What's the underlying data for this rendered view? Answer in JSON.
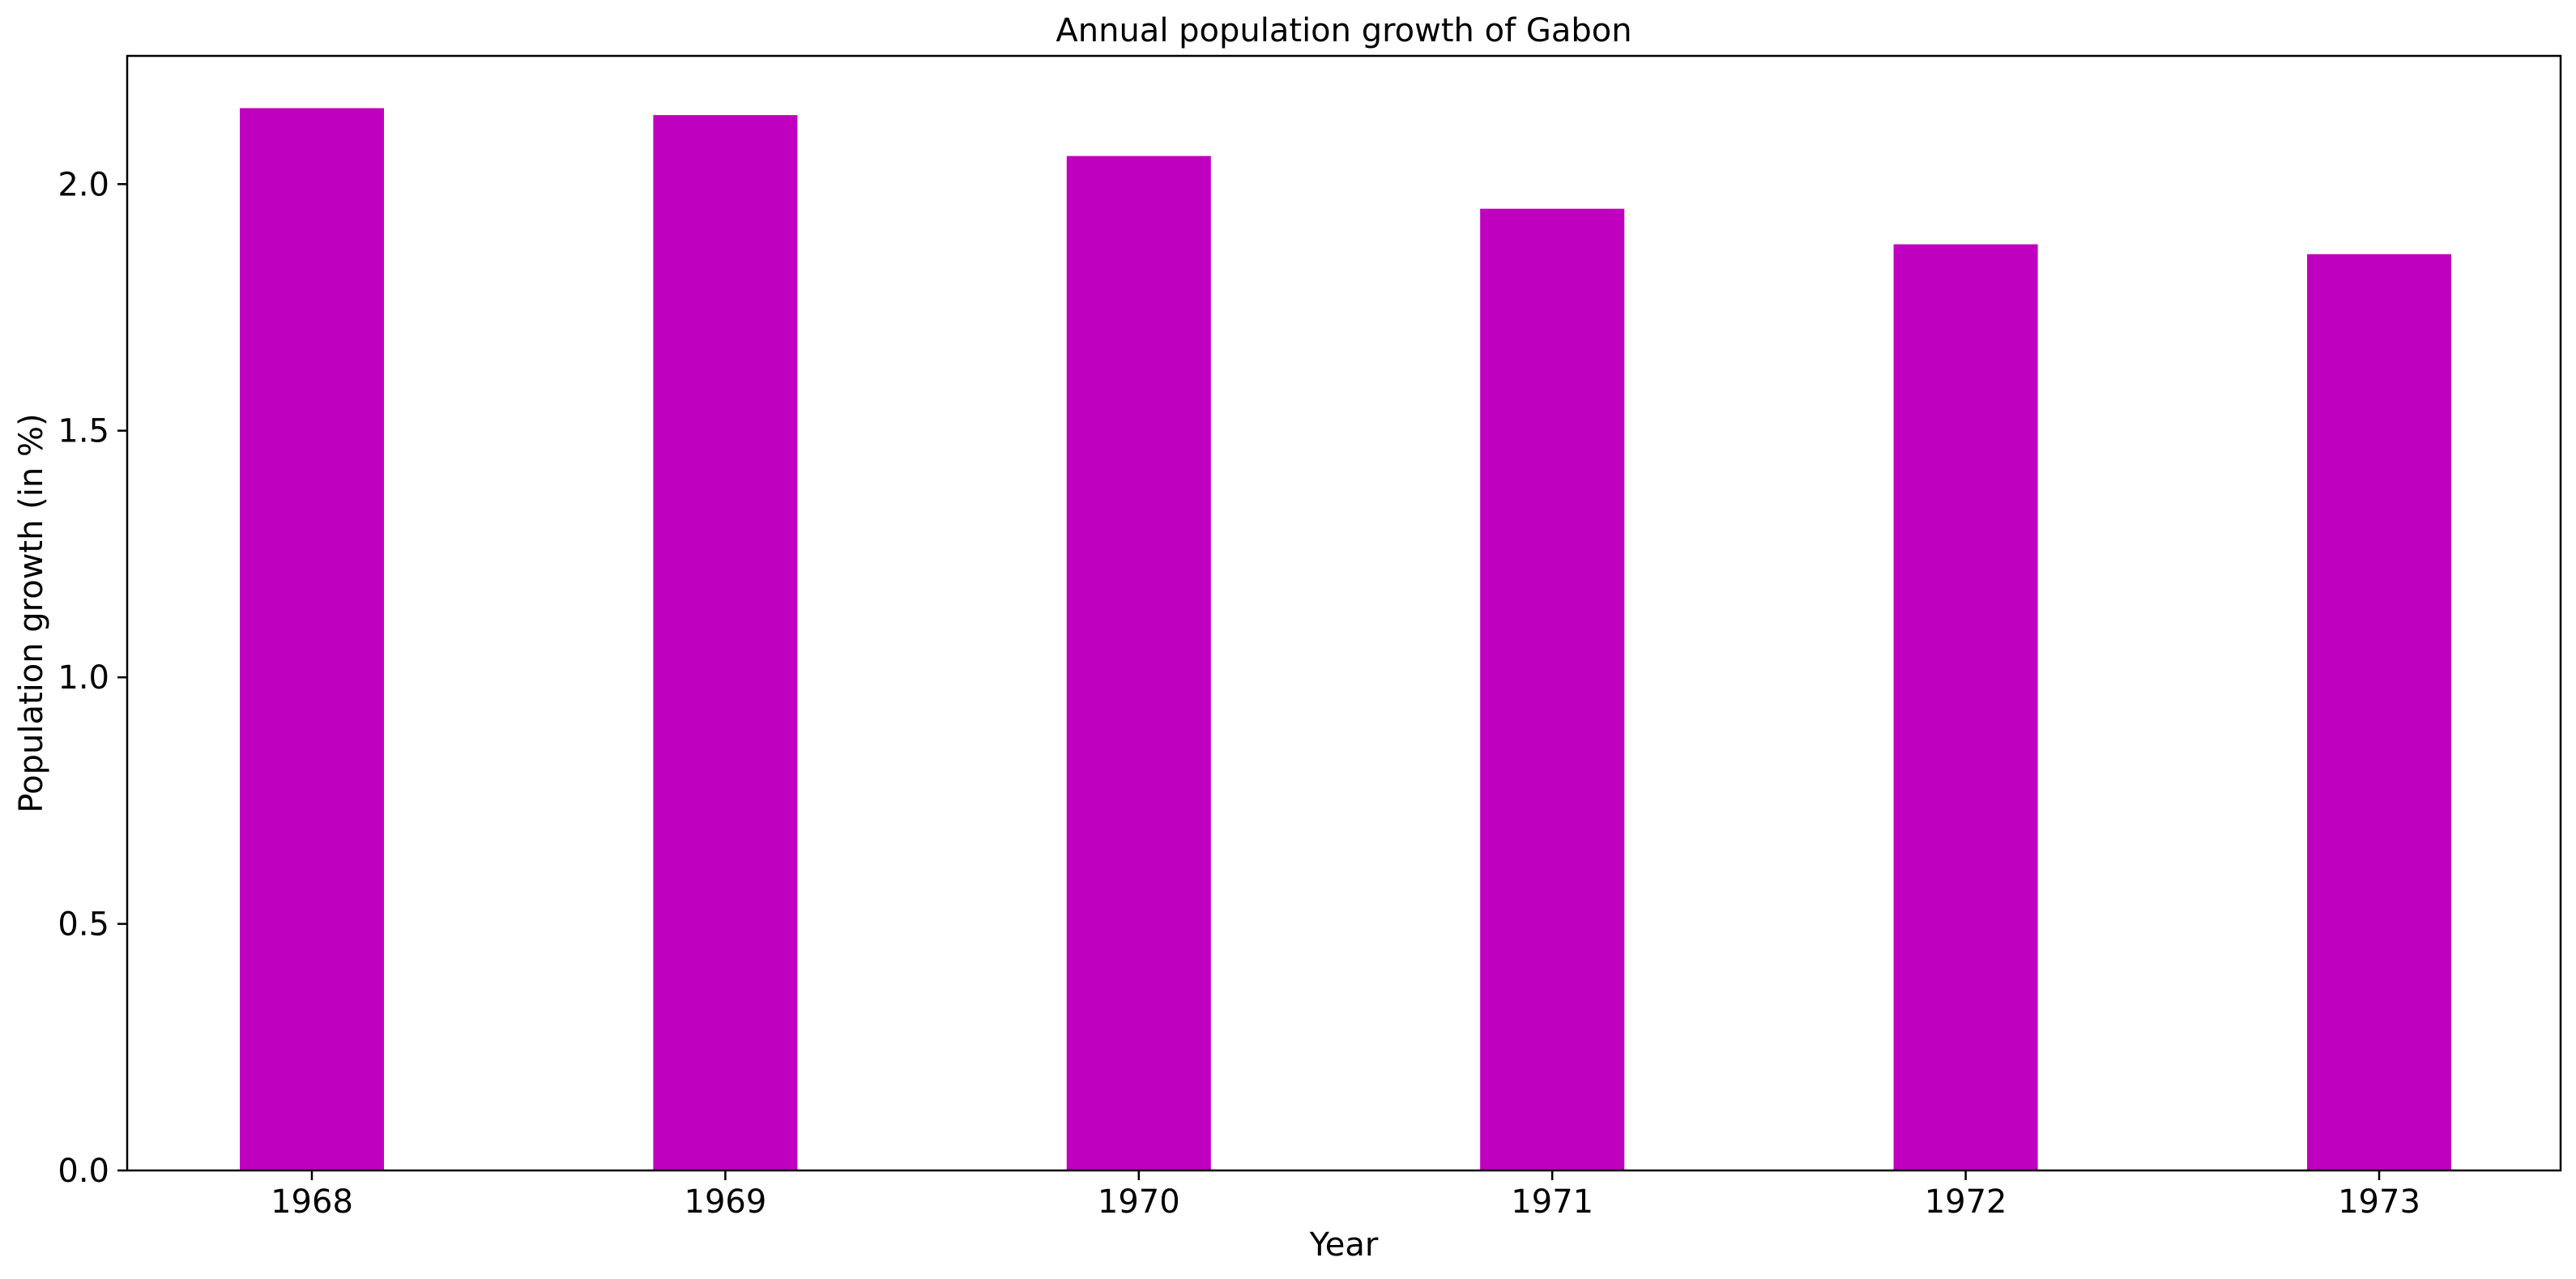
{
  "chart_data": {
    "type": "bar",
    "title": "Annual population growth of Gabon",
    "xlabel": "Year",
    "ylabel": "Population growth (in %)",
    "categories": [
      "1968",
      "1969",
      "1970",
      "1971",
      "1972",
      "1973"
    ],
    "values": [
      2.154,
      2.14,
      2.057,
      1.95,
      1.878,
      1.858
    ],
    "ylim": [
      0,
      2.26
    ],
    "yticks": [
      "0.0",
      "0.5",
      "1.0",
      "1.5",
      "2.0"
    ],
    "bar_color": "#bf00bf",
    "grid": false,
    "legend": "none"
  }
}
